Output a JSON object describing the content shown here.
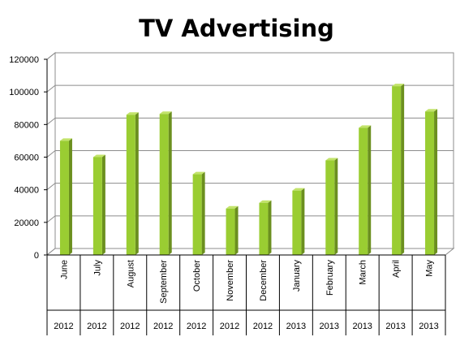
{
  "chart_data": {
    "type": "bar",
    "title": "TV Advertising",
    "xlabel": "",
    "ylabel": "",
    "categories": [
      "June",
      "July",
      "August",
      "September",
      "October",
      "November",
      "December",
      "January",
      "February",
      "March",
      "April",
      "May"
    ],
    "years": [
      "2012",
      "2012",
      "2012",
      "2012",
      "2012",
      "2012",
      "2012",
      "2013",
      "2013",
      "2013",
      "2013",
      "2013"
    ],
    "values": [
      70000,
      60000,
      86000,
      86500,
      49500,
      28500,
      32000,
      39500,
      58000,
      78000,
      103500,
      88000
    ],
    "ylim": [
      0,
      120000
    ],
    "yticks": [
      "0",
      "20000",
      "40000",
      "60000",
      "80000",
      "100000",
      "120000"
    ],
    "grid": true,
    "legend": "none",
    "colors": {
      "bar_front": "#9acd32",
      "bar_side": "#6b8f1f",
      "bar_top": "#c2e36a",
      "grid": "#8c8c8c",
      "wall": "#ffffff"
    }
  }
}
